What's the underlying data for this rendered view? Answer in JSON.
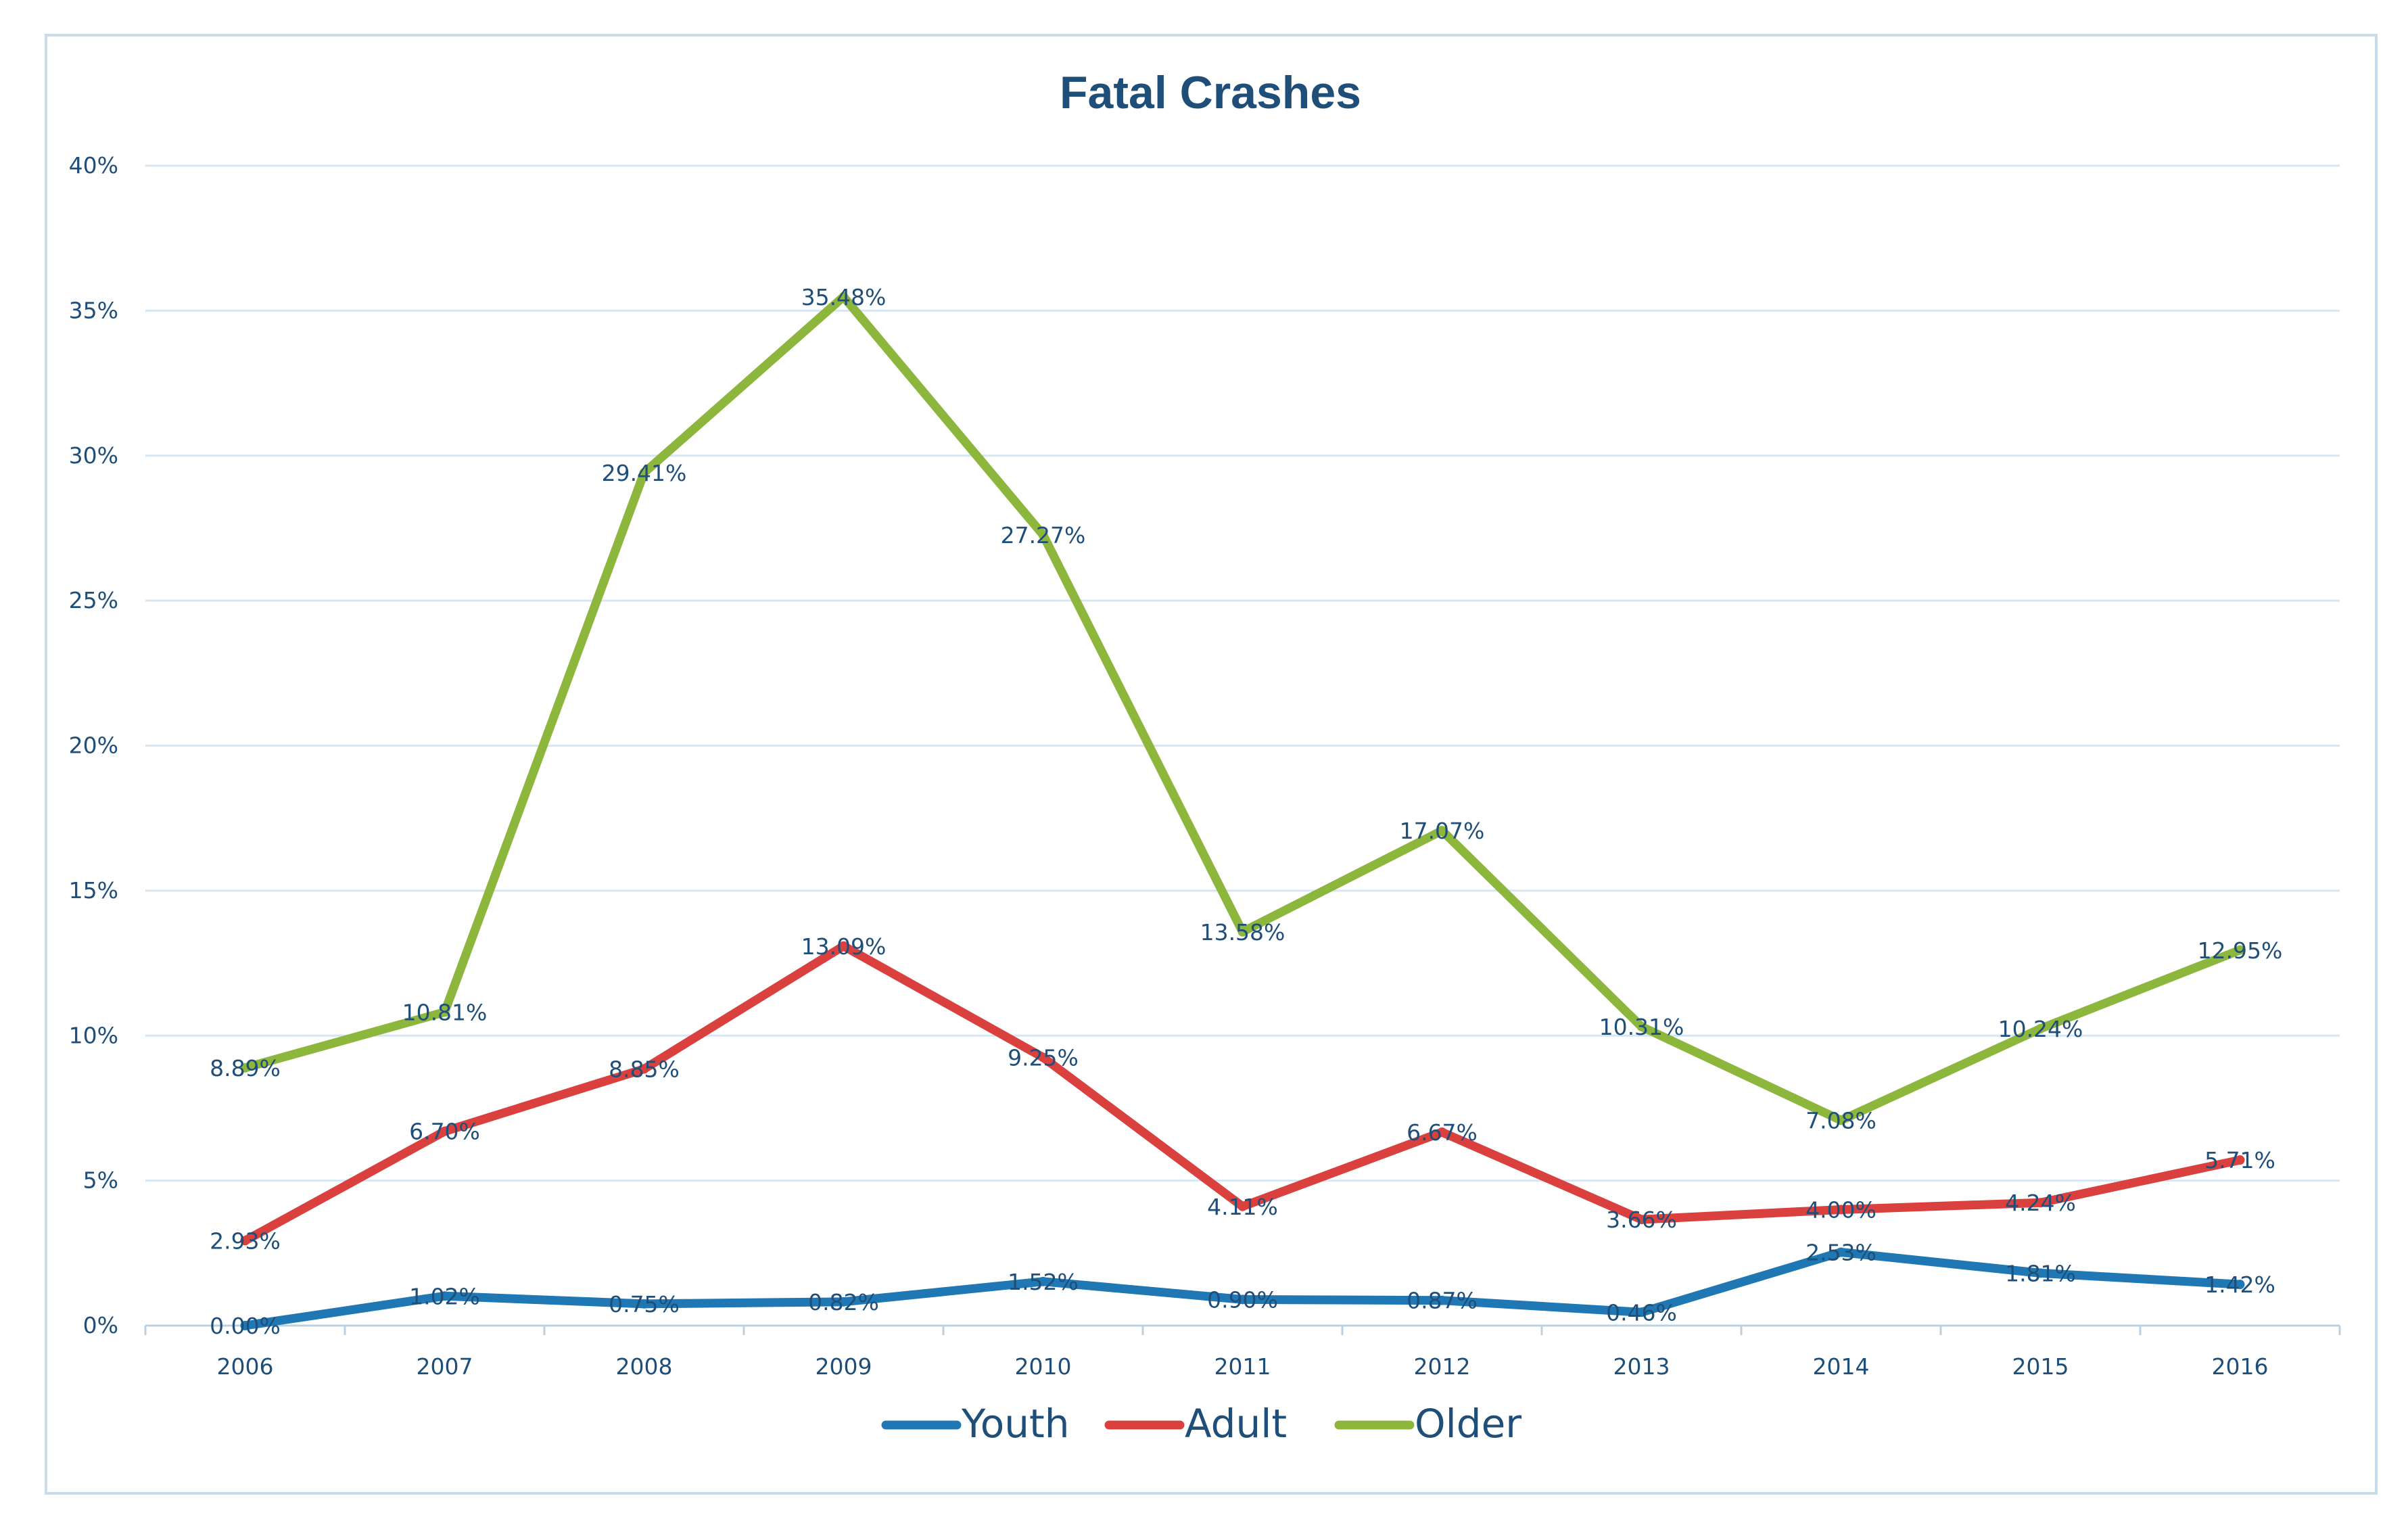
{
  "chart_data": {
    "type": "line",
    "title": "Fatal Crashes",
    "xlabel": "",
    "ylabel": "",
    "categories": [
      "2006",
      "2007",
      "2008",
      "2009",
      "2010",
      "2011",
      "2012",
      "2013",
      "2014",
      "2015",
      "2016"
    ],
    "y_ticks": [
      "0%",
      "5%",
      "10%",
      "15%",
      "20%",
      "25%",
      "30%",
      "35%",
      "40%"
    ],
    "ylim": [
      0,
      40
    ],
    "grid": true,
    "legend_position": "bottom",
    "series": [
      {
        "name": "Youth",
        "color": "#1f78b4",
        "values": [
          0.0,
          1.02,
          0.75,
          0.82,
          1.52,
          0.9,
          0.87,
          0.46,
          2.53,
          1.81,
          1.42
        ],
        "labels": [
          "0.00%",
          "1.02%",
          "0.75%",
          "0.82%",
          "1.52%",
          "0.90%",
          "0.87%",
          "0.46%",
          "2.53%",
          "1.81%",
          "1.42%"
        ]
      },
      {
        "name": "Adult",
        "color": "#d9403e",
        "values": [
          2.93,
          6.7,
          8.85,
          13.09,
          9.25,
          4.11,
          6.67,
          3.66,
          4.0,
          4.24,
          5.71
        ],
        "labels": [
          "2.93%",
          "6.70%",
          "8.85%",
          "13.09%",
          "9.25%",
          "4.11%",
          "6.67%",
          "3.66%",
          "4.00%",
          "4.24%",
          "5.71%"
        ]
      },
      {
        "name": "Older",
        "color": "#8cb63c",
        "values": [
          8.89,
          10.81,
          29.41,
          35.48,
          27.27,
          13.58,
          17.07,
          10.31,
          7.08,
          10.24,
          12.95
        ],
        "labels": [
          "8.89%",
          "10.81%",
          "29.41%",
          "35.48%",
          "27.27%",
          "13.58%",
          "17.07%",
          "10.31%",
          "7.08%",
          "10.24%",
          "12.95%"
        ]
      }
    ]
  }
}
